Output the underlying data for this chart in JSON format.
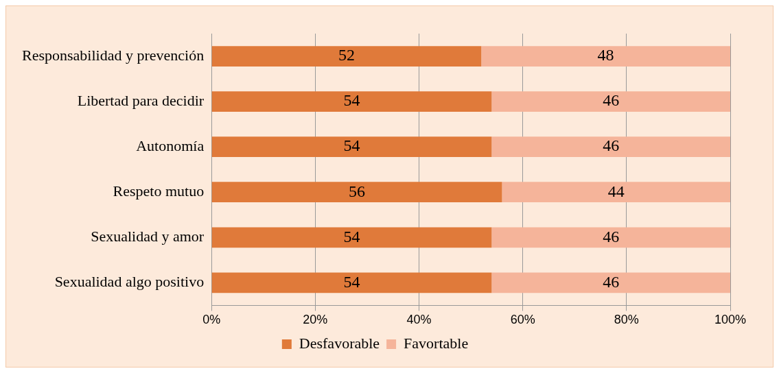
{
  "chart_data": {
    "type": "bar",
    "orientation": "horizontal",
    "stacked": true,
    "categories": [
      "Responsabilidad y prevención",
      "Libertad para decidir",
      "Autonomía",
      "Respeto mutuo",
      "Sexualidad y amor",
      "Sexualidad algo positivo"
    ],
    "series": [
      {
        "name": "Desfavorable",
        "color": "#e07a3a",
        "values": [
          52,
          54,
          54,
          56,
          54,
          54
        ]
      },
      {
        "name": "Favortable",
        "color": "#f5b49a",
        "values": [
          48,
          46,
          46,
          44,
          46,
          46
        ]
      }
    ],
    "xlim": [
      0,
      100
    ],
    "xticks": [
      {
        "value": 0,
        "label": "0%"
      },
      {
        "value": 20,
        "label": "20%"
      },
      {
        "value": 40,
        "label": "40%"
      },
      {
        "value": 60,
        "label": "60%"
      },
      {
        "value": 80,
        "label": "80%"
      },
      {
        "value": 100,
        "label": "100%"
      }
    ],
    "grid": "x",
    "legend": "bottom",
    "data_labels": true
  }
}
